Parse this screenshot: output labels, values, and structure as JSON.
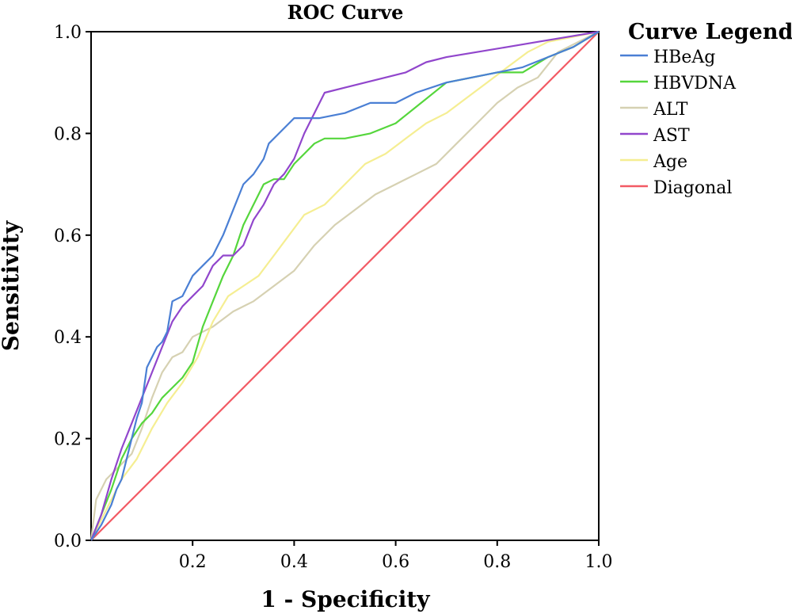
{
  "chart_data": {
    "type": "line",
    "title": "ROC Curve",
    "xlabel": "1 - Specificity",
    "ylabel": "Sensitivity",
    "xlim": [
      0,
      1
    ],
    "ylim": [
      0,
      1
    ],
    "x_ticks": [
      0.2,
      0.4,
      0.6,
      0.8,
      1.0
    ],
    "x_tick_labels": [
      "0.2",
      "0.4",
      "0.6",
      "0.8",
      "1.0"
    ],
    "y_ticks": [
      0.0,
      0.2,
      0.4,
      0.6,
      0.8,
      1.0
    ],
    "y_tick_labels": [
      "0.0",
      "0.2",
      "0.4",
      "0.6",
      "0.8",
      "1.0"
    ],
    "grid": false,
    "legend_title": "Curve Legend",
    "legend_position": "right",
    "series": [
      {
        "name": "HBeAg",
        "color": "#4a7fd4",
        "points": [
          [
            0,
            0
          ],
          [
            0.02,
            0.03
          ],
          [
            0.03,
            0.05
          ],
          [
            0.04,
            0.07
          ],
          [
            0.05,
            0.1
          ],
          [
            0.06,
            0.12
          ],
          [
            0.07,
            0.16
          ],
          [
            0.08,
            0.2
          ],
          [
            0.09,
            0.24
          ],
          [
            0.1,
            0.27
          ],
          [
            0.11,
            0.34
          ],
          [
            0.12,
            0.36
          ],
          [
            0.13,
            0.38
          ],
          [
            0.14,
            0.39
          ],
          [
            0.15,
            0.41
          ],
          [
            0.16,
            0.47
          ],
          [
            0.18,
            0.48
          ],
          [
            0.2,
            0.52
          ],
          [
            0.22,
            0.54
          ],
          [
            0.24,
            0.56
          ],
          [
            0.26,
            0.6
          ],
          [
            0.28,
            0.65
          ],
          [
            0.3,
            0.7
          ],
          [
            0.32,
            0.72
          ],
          [
            0.34,
            0.75
          ],
          [
            0.35,
            0.78
          ],
          [
            0.37,
            0.8
          ],
          [
            0.4,
            0.83
          ],
          [
            0.45,
            0.83
          ],
          [
            0.5,
            0.84
          ],
          [
            0.55,
            0.86
          ],
          [
            0.6,
            0.86
          ],
          [
            0.64,
            0.88
          ],
          [
            0.7,
            0.9
          ],
          [
            0.75,
            0.91
          ],
          [
            0.8,
            0.92
          ],
          [
            0.85,
            0.93
          ],
          [
            0.9,
            0.95
          ],
          [
            0.95,
            0.97
          ],
          [
            1,
            1
          ]
        ]
      },
      {
        "name": "HBVDNA",
        "color": "#55d63c",
        "points": [
          [
            0,
            0
          ],
          [
            0.02,
            0.05
          ],
          [
            0.04,
            0.1
          ],
          [
            0.06,
            0.16
          ],
          [
            0.08,
            0.2
          ],
          [
            0.1,
            0.23
          ],
          [
            0.12,
            0.25
          ],
          [
            0.14,
            0.28
          ],
          [
            0.16,
            0.3
          ],
          [
            0.18,
            0.32
          ],
          [
            0.2,
            0.35
          ],
          [
            0.22,
            0.42
          ],
          [
            0.24,
            0.47
          ],
          [
            0.26,
            0.52
          ],
          [
            0.28,
            0.56
          ],
          [
            0.3,
            0.62
          ],
          [
            0.32,
            0.66
          ],
          [
            0.34,
            0.7
          ],
          [
            0.36,
            0.71
          ],
          [
            0.38,
            0.71
          ],
          [
            0.4,
            0.74
          ],
          [
            0.42,
            0.76
          ],
          [
            0.44,
            0.78
          ],
          [
            0.46,
            0.79
          ],
          [
            0.5,
            0.79
          ],
          [
            0.55,
            0.8
          ],
          [
            0.6,
            0.82
          ],
          [
            0.65,
            0.86
          ],
          [
            0.7,
            0.9
          ],
          [
            0.75,
            0.91
          ],
          [
            0.8,
            0.92
          ],
          [
            0.85,
            0.92
          ],
          [
            0.9,
            0.95
          ],
          [
            0.95,
            0.97
          ],
          [
            1,
            1
          ]
        ]
      },
      {
        "name": "ALT",
        "color": "#d6d1b2",
        "points": [
          [
            0,
            0
          ],
          [
            0.01,
            0.08
          ],
          [
            0.02,
            0.1
          ],
          [
            0.03,
            0.12
          ],
          [
            0.04,
            0.13
          ],
          [
            0.06,
            0.15
          ],
          [
            0.08,
            0.17
          ],
          [
            0.1,
            0.22
          ],
          [
            0.12,
            0.28
          ],
          [
            0.14,
            0.33
          ],
          [
            0.16,
            0.36
          ],
          [
            0.18,
            0.37
          ],
          [
            0.2,
            0.4
          ],
          [
            0.24,
            0.42
          ],
          [
            0.28,
            0.45
          ],
          [
            0.32,
            0.47
          ],
          [
            0.36,
            0.5
          ],
          [
            0.4,
            0.53
          ],
          [
            0.44,
            0.58
          ],
          [
            0.48,
            0.62
          ],
          [
            0.52,
            0.65
          ],
          [
            0.56,
            0.68
          ],
          [
            0.6,
            0.7
          ],
          [
            0.64,
            0.72
          ],
          [
            0.68,
            0.74
          ],
          [
            0.72,
            0.78
          ],
          [
            0.76,
            0.82
          ],
          [
            0.8,
            0.86
          ],
          [
            0.84,
            0.89
          ],
          [
            0.88,
            0.91
          ],
          [
            0.92,
            0.96
          ],
          [
            0.96,
            0.98
          ],
          [
            1,
            1
          ]
        ]
      },
      {
        "name": "AST",
        "color": "#9146cc",
        "points": [
          [
            0,
            0
          ],
          [
            0.02,
            0.05
          ],
          [
            0.04,
            0.12
          ],
          [
            0.06,
            0.18
          ],
          [
            0.08,
            0.23
          ],
          [
            0.1,
            0.28
          ],
          [
            0.12,
            0.33
          ],
          [
            0.14,
            0.38
          ],
          [
            0.16,
            0.43
          ],
          [
            0.18,
            0.46
          ],
          [
            0.2,
            0.48
          ],
          [
            0.22,
            0.5
          ],
          [
            0.24,
            0.54
          ],
          [
            0.26,
            0.56
          ],
          [
            0.28,
            0.56
          ],
          [
            0.3,
            0.58
          ],
          [
            0.32,
            0.63
          ],
          [
            0.34,
            0.66
          ],
          [
            0.36,
            0.7
          ],
          [
            0.38,
            0.72
          ],
          [
            0.4,
            0.75
          ],
          [
            0.42,
            0.8
          ],
          [
            0.44,
            0.84
          ],
          [
            0.46,
            0.88
          ],
          [
            0.5,
            0.89
          ],
          [
            0.54,
            0.9
          ],
          [
            0.58,
            0.91
          ],
          [
            0.62,
            0.92
          ],
          [
            0.66,
            0.94
          ],
          [
            0.7,
            0.95
          ],
          [
            0.76,
            0.96
          ],
          [
            0.82,
            0.97
          ],
          [
            0.88,
            0.98
          ],
          [
            0.94,
            0.99
          ],
          [
            1,
            1
          ]
        ]
      },
      {
        "name": "Age",
        "color": "#f5ee92",
        "points": [
          [
            0,
            0
          ],
          [
            0.03,
            0.06
          ],
          [
            0.06,
            0.12
          ],
          [
            0.09,
            0.16
          ],
          [
            0.12,
            0.22
          ],
          [
            0.15,
            0.27
          ],
          [
            0.18,
            0.31
          ],
          [
            0.21,
            0.36
          ],
          [
            0.24,
            0.43
          ],
          [
            0.27,
            0.48
          ],
          [
            0.3,
            0.5
          ],
          [
            0.33,
            0.52
          ],
          [
            0.36,
            0.56
          ],
          [
            0.39,
            0.6
          ],
          [
            0.42,
            0.64
          ],
          [
            0.46,
            0.66
          ],
          [
            0.5,
            0.7
          ],
          [
            0.54,
            0.74
          ],
          [
            0.58,
            0.76
          ],
          [
            0.62,
            0.79
          ],
          [
            0.66,
            0.82
          ],
          [
            0.7,
            0.84
          ],
          [
            0.74,
            0.87
          ],
          [
            0.78,
            0.9
          ],
          [
            0.82,
            0.93
          ],
          [
            0.86,
            0.96
          ],
          [
            0.9,
            0.98
          ],
          [
            0.95,
            0.99
          ],
          [
            1,
            1
          ]
        ]
      },
      {
        "name": "Diagonal",
        "color": "#f25a64",
        "points": [
          [
            0,
            0
          ],
          [
            1,
            1
          ]
        ]
      }
    ]
  }
}
